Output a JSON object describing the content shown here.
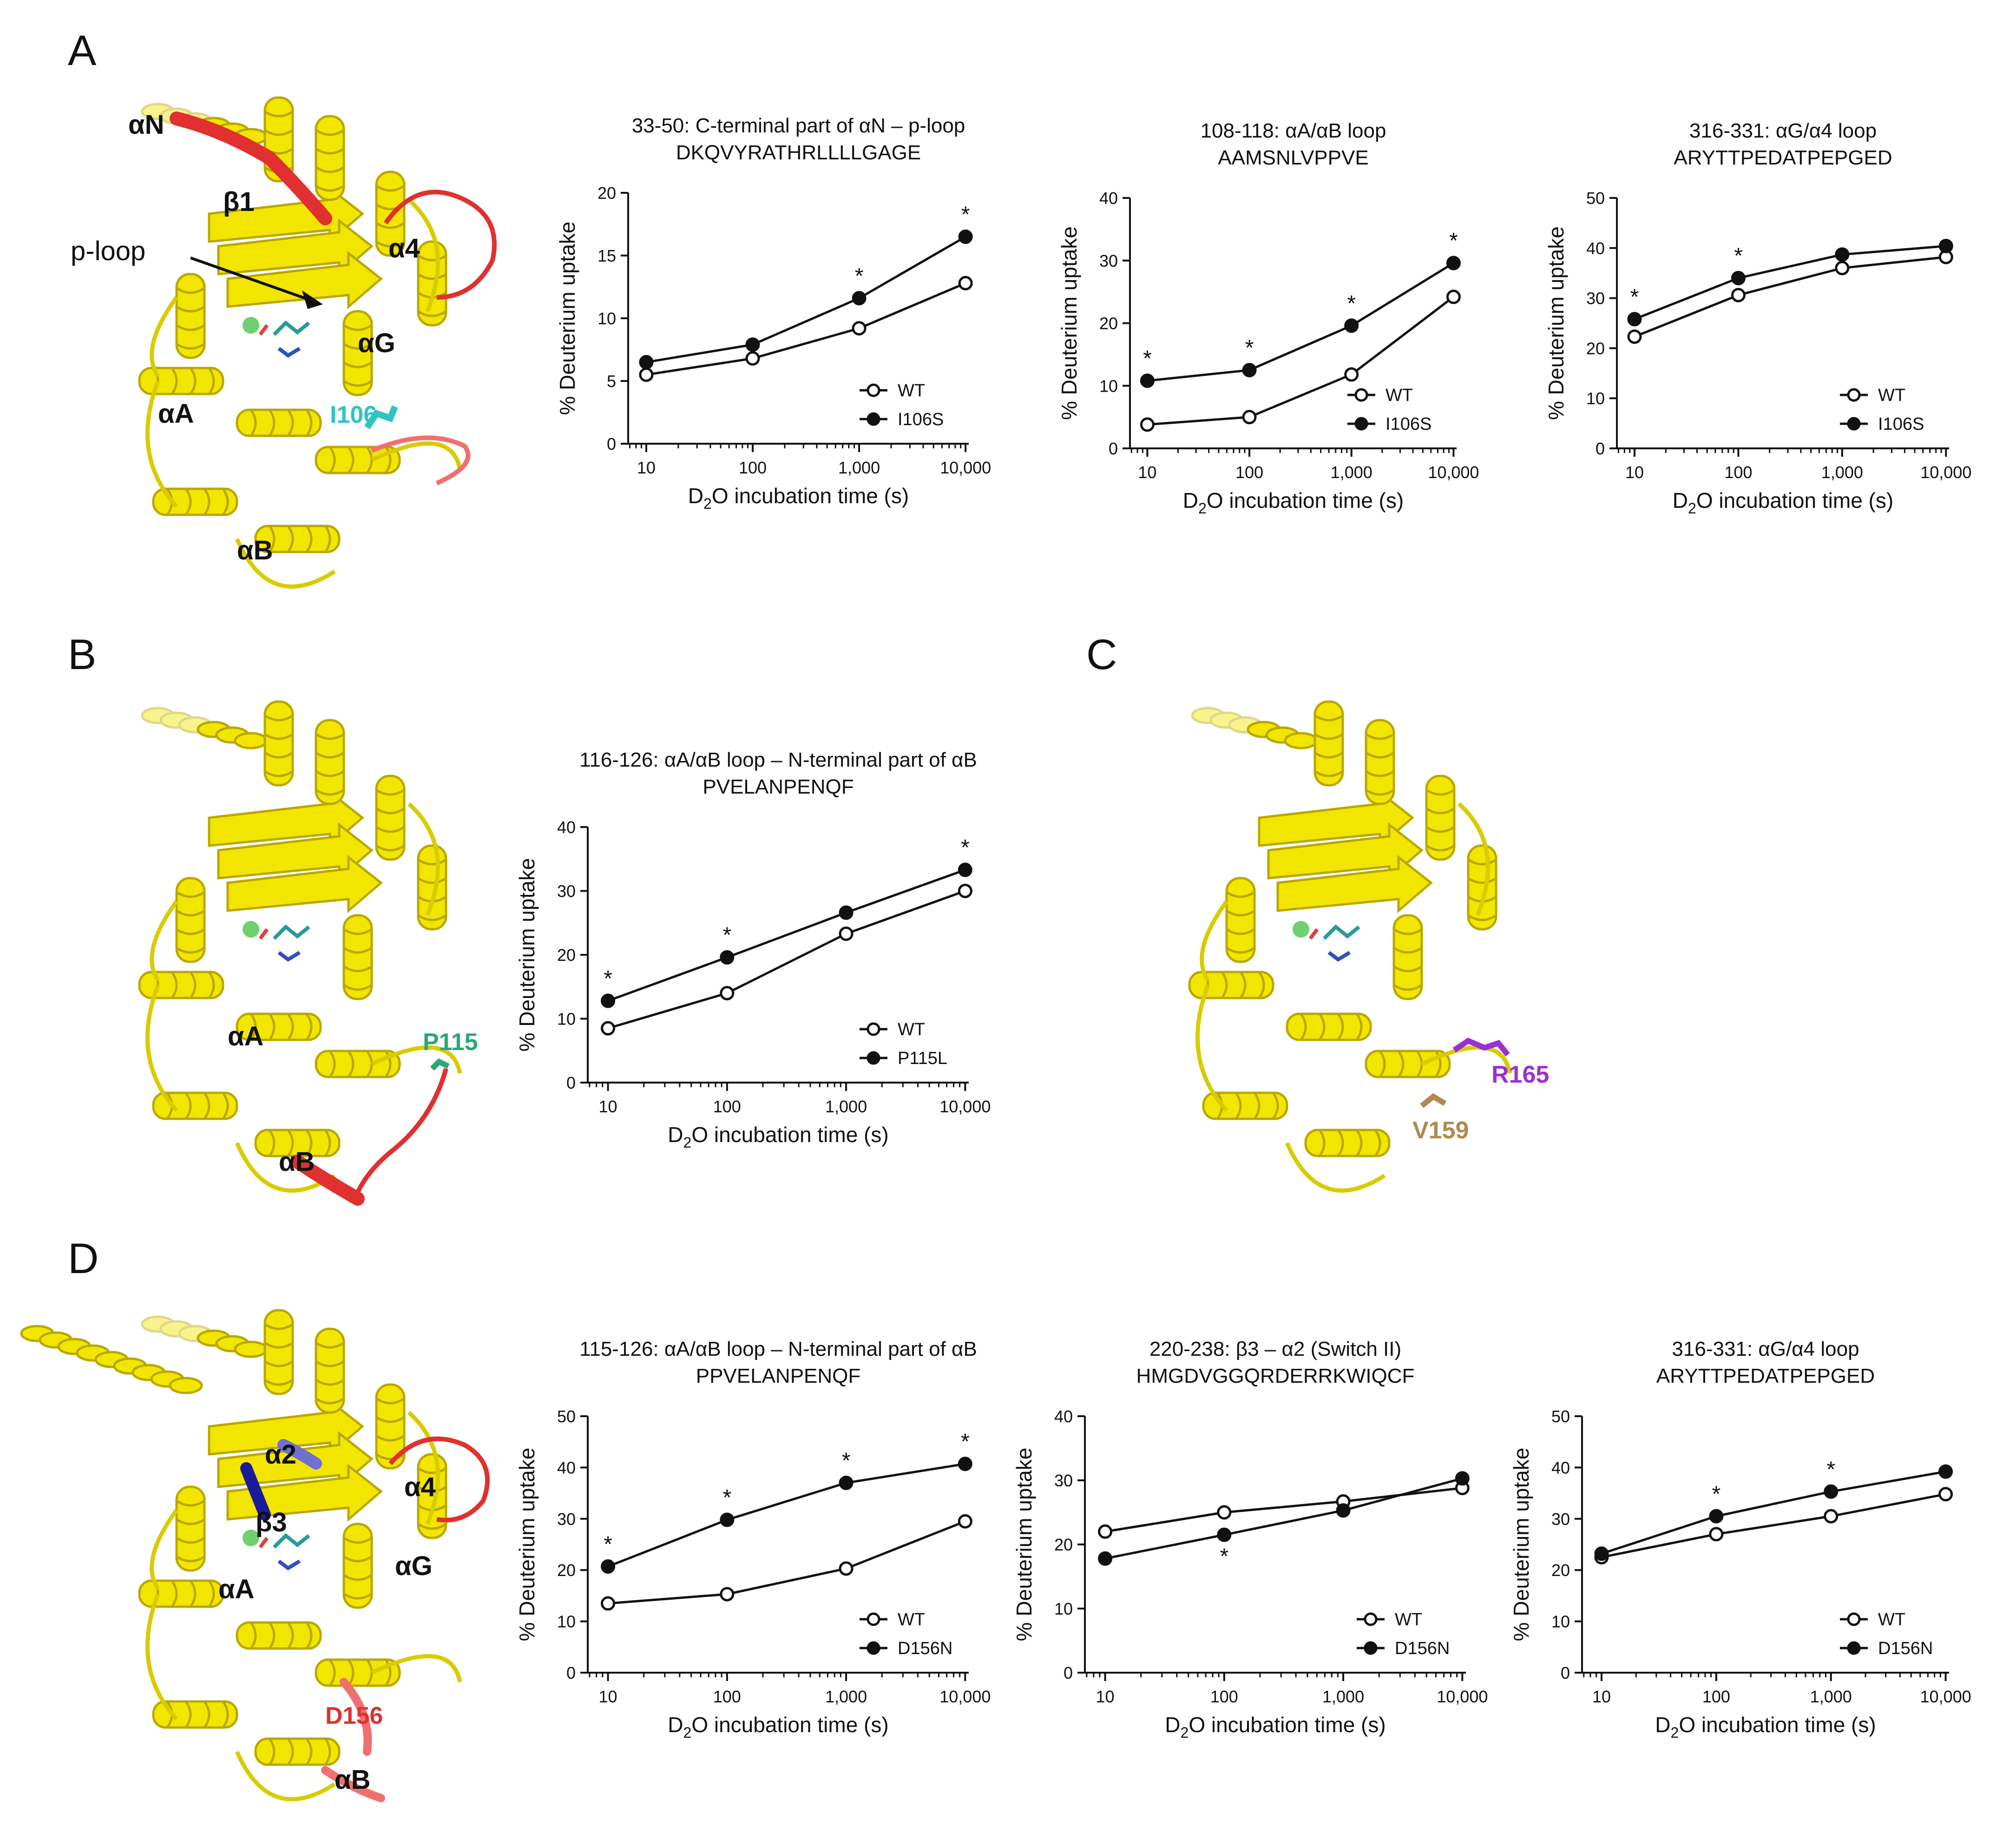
{
  "panels": {
    "A": "A",
    "B": "B",
    "C": "C",
    "D": "D"
  },
  "structures": {
    "A": {
      "labels": [
        "αN",
        "β1",
        "p-loop",
        "α4",
        "αG",
        "αA",
        "αB"
      ],
      "residue": "I106",
      "residue_color": "#2ec4c4"
    },
    "B": {
      "labels": [
        "αA",
        "αB"
      ],
      "residue": "P115",
      "residue_color": "#2aa876"
    },
    "C": {
      "residue1": "R165",
      "residue1_color": "#9b30d0",
      "residue2": "V159",
      "residue2_color": "#b08a50"
    },
    "D": {
      "labels": [
        "α2",
        "β3",
        "α4",
        "αG",
        "αA",
        "αB"
      ],
      "residue": "D156",
      "residue_color": "#e03030"
    }
  },
  "colors": {
    "helix": "#f2e600",
    "helix_edge": "#b8a800",
    "loop_red": "#e03030",
    "loop_pink": "#f07070",
    "beta_blue": "#1a1a9a"
  },
  "chart_data": [
    {
      "id": "A1",
      "type": "line",
      "title": "33-50: C-terminal part of αN – p-loop",
      "subtitle": "DKQVYRATHRLLLLGAGE",
      "xlabel_pre": "D",
      "xlabel_sub": "2",
      "xlabel_post": "O incubation time (s)",
      "ylabel": "% Deuterium uptake",
      "xscale": "log",
      "x": [
        10,
        100,
        1000,
        10000
      ],
      "xticks": [
        "10",
        "100",
        "1,000",
        "10,000"
      ],
      "ylim": [
        0,
        20
      ],
      "yticks": [
        0,
        5,
        10,
        15,
        20
      ],
      "series": [
        {
          "name": "WT",
          "values": [
            5.5,
            6.8,
            9.2,
            12.8
          ]
        },
        {
          "name": "I106S",
          "values": [
            6.5,
            7.9,
            11.6,
            16.5
          ]
        }
      ],
      "stars": [
        false,
        false,
        true,
        true
      ],
      "star_pos": "above"
    },
    {
      "id": "A2",
      "type": "line",
      "title": "108-118: αA/αB loop",
      "subtitle": "AAMSNLVPPVE",
      "xlabel_pre": "D",
      "xlabel_sub": "2",
      "xlabel_post": "O incubation time (s)",
      "ylabel": "% Deuterium uptake",
      "xscale": "log",
      "x": [
        10,
        100,
        1000,
        10000
      ],
      "xticks": [
        "10",
        "100",
        "1,000",
        "10,000"
      ],
      "ylim": [
        0,
        40
      ],
      "yticks": [
        0,
        10,
        20,
        30,
        40
      ],
      "series": [
        {
          "name": "WT",
          "values": [
            3.8,
            5.0,
            11.8,
            24.2
          ]
        },
        {
          "name": "I106S",
          "values": [
            10.8,
            12.5,
            19.6,
            29.6
          ]
        }
      ],
      "stars": [
        true,
        true,
        true,
        true
      ],
      "star_pos": "above"
    },
    {
      "id": "A3",
      "type": "line",
      "title": "316-331: αG/α4 loop",
      "subtitle": "ARYTTPEDATPEPGED",
      "xlabel_pre": "D",
      "xlabel_sub": "2",
      "xlabel_post": "O incubation time (s)",
      "ylabel": "% Deuterium uptake",
      "xscale": "log",
      "x": [
        10,
        100,
        1000,
        10000
      ],
      "xticks": [
        "10",
        "100",
        "1,000",
        "10,000"
      ],
      "ylim": [
        0,
        50
      ],
      "yticks": [
        0,
        10,
        20,
        30,
        40,
        50
      ],
      "series": [
        {
          "name": "WT",
          "values": [
            22.3,
            30.6,
            36.0,
            38.2
          ]
        },
        {
          "name": "I106S",
          "values": [
            25.8,
            34.0,
            38.7,
            40.4
          ]
        }
      ],
      "stars": [
        true,
        true,
        false,
        false
      ],
      "star_pos": "above"
    },
    {
      "id": "B1",
      "type": "line",
      "title": "116-126: αA/αB loop – N-terminal part of αB",
      "subtitle": "PVELANPENQF",
      "xlabel_pre": "D",
      "xlabel_sub": "2",
      "xlabel_post": "O incubation time (s)",
      "ylabel": "% Deuterium uptake",
      "xscale": "log",
      "x": [
        10,
        100,
        1000,
        10000
      ],
      "xticks": [
        "10",
        "100",
        "1,000",
        "10,000"
      ],
      "ylim": [
        0,
        40
      ],
      "yticks": [
        0,
        10,
        20,
        30,
        40
      ],
      "series": [
        {
          "name": "WT",
          "values": [
            8.5,
            14.0,
            23.3,
            30.0
          ]
        },
        {
          "name": "P115L",
          "values": [
            12.8,
            19.6,
            26.6,
            33.3
          ]
        }
      ],
      "stars": [
        true,
        true,
        false,
        true
      ],
      "star_pos": "above"
    },
    {
      "id": "D1",
      "type": "line",
      "title": "115-126: αA/αB loop – N-terminal part of αB",
      "subtitle": "PPVELANPENQF",
      "xlabel_pre": "D",
      "xlabel_sub": "2",
      "xlabel_post": "O incubation time (s)",
      "ylabel": "% Deuterium uptake",
      "xscale": "log",
      "x": [
        10,
        100,
        1000,
        10000
      ],
      "xticks": [
        "10",
        "100",
        "1,000",
        "10,000"
      ],
      "ylim": [
        0,
        50
      ],
      "yticks": [
        0,
        10,
        20,
        30,
        40,
        50
      ],
      "series": [
        {
          "name": "WT",
          "values": [
            13.5,
            15.3,
            20.3,
            29.5
          ]
        },
        {
          "name": "D156N",
          "values": [
            20.7,
            29.8,
            37.0,
            40.7
          ]
        }
      ],
      "stars": [
        true,
        true,
        true,
        true
      ],
      "star_pos": "above"
    },
    {
      "id": "D2",
      "type": "line",
      "title": "220-238: β3 – α2 (Switch II)",
      "subtitle": "HMGDVGGQRDERRKWIQCF",
      "xlabel_pre": "D",
      "xlabel_sub": "2",
      "xlabel_post": "O incubation time (s)",
      "ylabel": "% Deuterium uptake",
      "xscale": "log",
      "x": [
        10,
        100,
        1000,
        10000
      ],
      "xticks": [
        "10",
        "100",
        "1,000",
        "10,000"
      ],
      "ylim": [
        0,
        40
      ],
      "yticks": [
        0,
        10,
        20,
        30,
        40
      ],
      "series": [
        {
          "name": "WT",
          "values": [
            22.0,
            25.0,
            26.7,
            28.8
          ]
        },
        {
          "name": "D156N",
          "values": [
            17.8,
            21.5,
            25.3,
            30.3
          ]
        }
      ],
      "stars": [
        false,
        true,
        false,
        false
      ],
      "star_pos": "below"
    },
    {
      "id": "D3",
      "type": "line",
      "title": "316-331: αG/α4 loop",
      "subtitle": "ARYTTPEDATPEPGED",
      "xlabel_pre": "D",
      "xlabel_sub": "2",
      "xlabel_post": "O incubation time (s)",
      "ylabel": "% Deuterium uptake",
      "xscale": "log",
      "x": [
        10,
        100,
        1000,
        10000
      ],
      "xticks": [
        "10",
        "100",
        "1,000",
        "10,000"
      ],
      "ylim": [
        0,
        50
      ],
      "yticks": [
        0,
        10,
        20,
        30,
        40,
        50
      ],
      "series": [
        {
          "name": "WT",
          "values": [
            22.5,
            27.0,
            30.5,
            34.8
          ]
        },
        {
          "name": "D156N",
          "values": [
            23.2,
            30.5,
            35.3,
            39.2
          ]
        }
      ],
      "stars": [
        false,
        true,
        true,
        false
      ],
      "star_pos": "above"
    }
  ]
}
